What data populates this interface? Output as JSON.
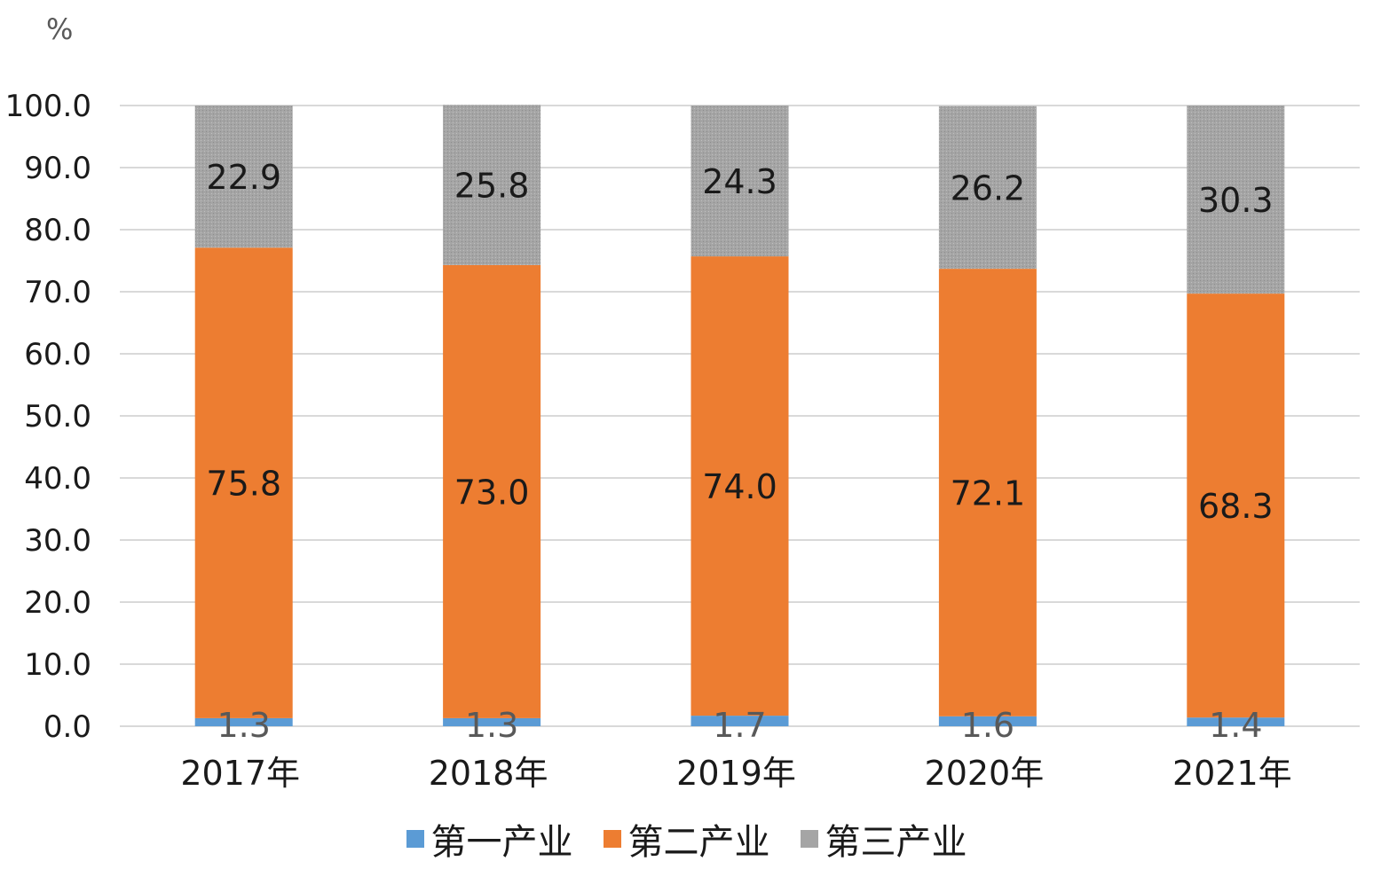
{
  "chart_data": {
    "type": "bar",
    "stacked": true,
    "unit": "%",
    "categories": [
      "2017年",
      "2018年",
      "2019年",
      "2020年",
      "2021年"
    ],
    "series": [
      {
        "name": "第一产业",
        "values": [
          1.3,
          1.3,
          1.7,
          1.6,
          1.4
        ],
        "color": "#5B9BD5"
      },
      {
        "name": "第二产业",
        "values": [
          75.8,
          73.0,
          74.0,
          72.1,
          68.3
        ],
        "color": "#ED7D31"
      },
      {
        "name": "第三产业",
        "values": [
          22.9,
          25.8,
          24.3,
          26.2,
          30.3
        ],
        "color": "#A5A5A5"
      }
    ],
    "ylim": [
      0,
      100
    ],
    "yticks": [
      "0.0",
      "10.0",
      "20.0",
      "30.0",
      "40.0",
      "50.0",
      "60.0",
      "70.0",
      "80.0",
      "90.0",
      "100.0"
    ],
    "grid": true,
    "legend_position": "bottom"
  }
}
